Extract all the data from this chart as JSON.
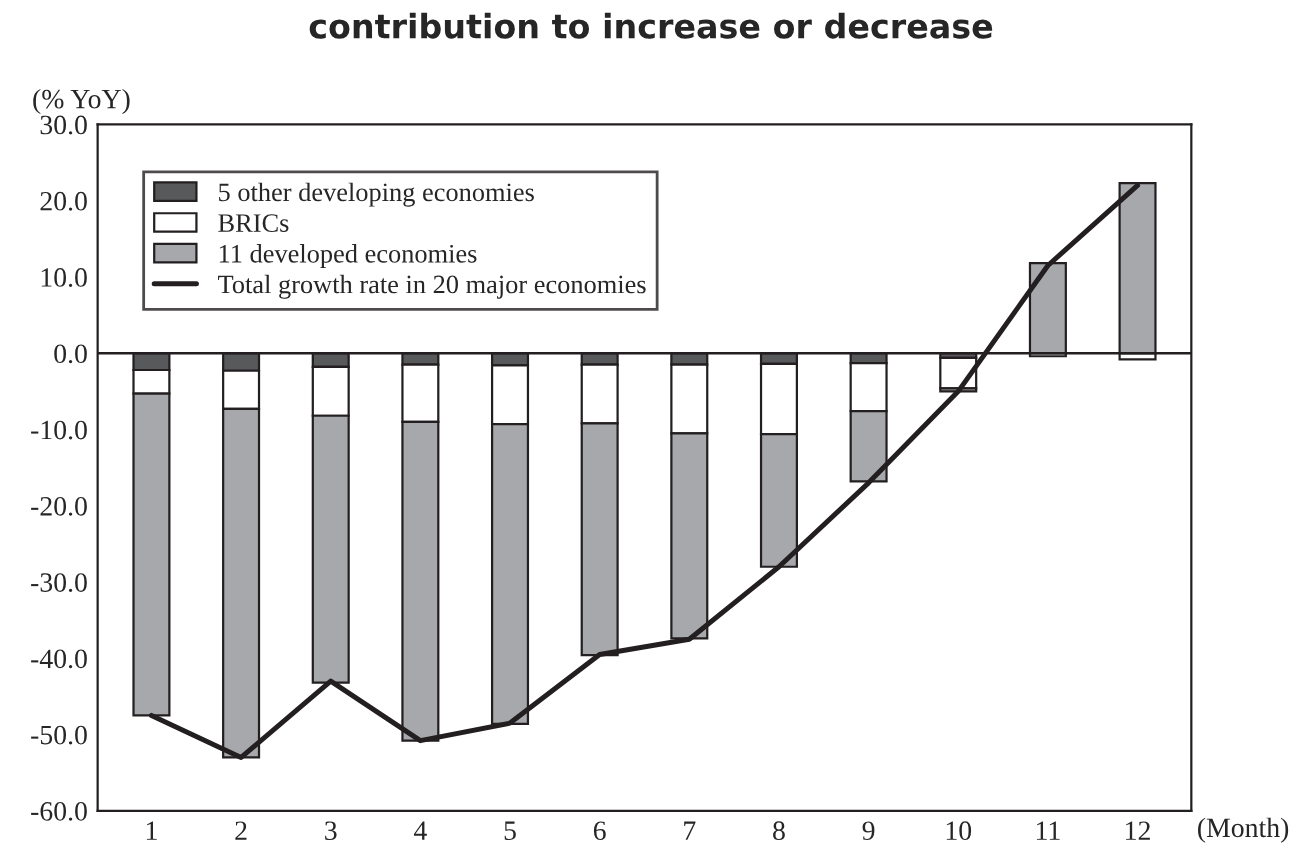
{
  "chart_data": {
    "type": "bar",
    "stacked": true,
    "title": "contribution to increase or decrease",
    "ylabel": "(% YoY)",
    "xlabel": "(Month)",
    "categories": [
      "1",
      "2",
      "3",
      "4",
      "5",
      "6",
      "7",
      "8",
      "9",
      "10",
      "11",
      "12"
    ],
    "series": [
      {
        "name": "5 other developing economies",
        "color": "#58595b",
        "values": [
          -2.2,
          -2.3,
          -1.8,
          -1.5,
          -1.6,
          -1.5,
          -1.5,
          -1.4,
          -1.3,
          -0.6,
          null,
          null
        ]
      },
      {
        "name": "BRICs",
        "color": "#ffffff",
        "values": [
          -3.1,
          -5.0,
          -6.4,
          -7.5,
          -7.7,
          -7.7,
          -9.0,
          -9.2,
          -6.3,
          -4.0,
          -0.4,
          -0.8
        ]
      },
      {
        "name": "11 developed economies",
        "color": "#a7a8ab",
        "values": [
          -42.2,
          -45.7,
          -35.0,
          -41.8,
          -39.3,
          -30.4,
          -26.9,
          -17.4,
          -9.2,
          -0.4,
          11.8,
          22.3
        ]
      },
      {
        "name": "Total growth rate in 20 major economies",
        "type": "line",
        "color": "#231f20",
        "values": [
          -47.5,
          -53.0,
          -43.0,
          -50.8,
          -48.5,
          -39.5,
          -37.5,
          -28.0,
          -17.0,
          -5.0,
          11.5,
          22.0
        ]
      }
    ],
    "ylim": [
      -60,
      30
    ],
    "yticks": [
      {
        "value": -60,
        "label": "-60.0"
      },
      {
        "value": -50,
        "label": "-50.0"
      },
      {
        "value": -40,
        "label": "-40.0"
      },
      {
        "value": -30,
        "label": "-30.0"
      },
      {
        "value": -20,
        "label": "-20.0"
      },
      {
        "value": -10,
        "label": "-10.0"
      },
      {
        "value": 0,
        "label": "0.0"
      },
      {
        "value": 10,
        "label": "10.0"
      },
      {
        "value": 20,
        "label": "20.0"
      },
      {
        "value": 30,
        "label": "30.0"
      }
    ],
    "ref_lines": [
      {
        "axis": "y",
        "value": 0,
        "color": "#231f20"
      }
    ],
    "grid": false,
    "legend": "top left"
  }
}
